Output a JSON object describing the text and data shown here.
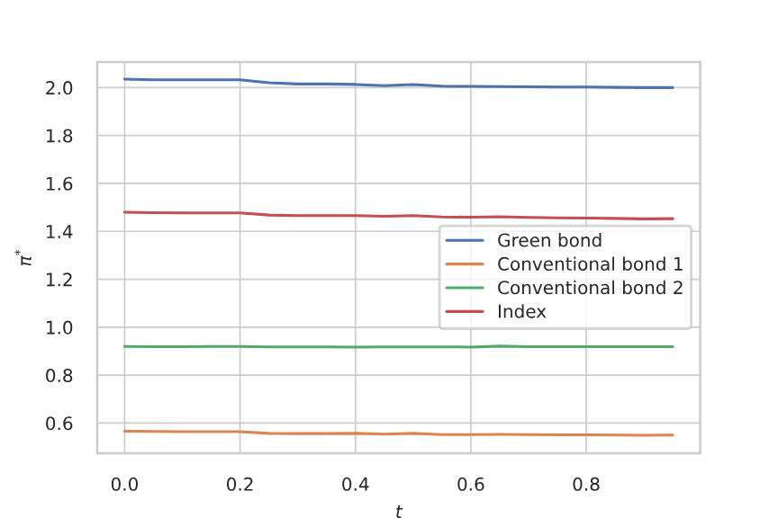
{
  "chart_data": {
    "type": "line",
    "xlabel": "t",
    "ylabel": "π$^{*}$",
    "x": [
      0,
      0.05,
      0.1,
      0.15,
      0.2,
      0.25,
      0.3,
      0.35,
      0.4,
      0.45,
      0.5,
      0.55,
      0.6,
      0.65,
      0.7,
      0.75,
      0.8,
      0.85,
      0.9,
      0.95
    ],
    "series": [
      {
        "name": "Green bond",
        "color": "#4c72b0",
        "values": [
          2.035,
          2.032,
          2.032,
          2.032,
          2.032,
          2.02,
          2.015,
          2.015,
          2.013,
          2.008,
          2.013,
          2.006,
          2.005,
          2.004,
          2.003,
          2.002,
          2.002,
          2.001,
          2.0,
          2.0
        ]
      },
      {
        "name": "Conventional bond 1",
        "color": "#dd8452",
        "values": [
          0.566,
          0.565,
          0.564,
          0.564,
          0.564,
          0.557,
          0.556,
          0.556,
          0.557,
          0.554,
          0.557,
          0.552,
          0.552,
          0.553,
          0.552,
          0.551,
          0.551,
          0.55,
          0.549,
          0.55
        ]
      },
      {
        "name": "Conventional bond 2",
        "color": "#55a868",
        "values": [
          0.92,
          0.919,
          0.919,
          0.92,
          0.92,
          0.918,
          0.918,
          0.918,
          0.917,
          0.918,
          0.918,
          0.918,
          0.917,
          0.921,
          0.919,
          0.919,
          0.919,
          0.919,
          0.919,
          0.919
        ]
      },
      {
        "name": "Index",
        "color": "#c44e52",
        "values": [
          1.48,
          1.478,
          1.477,
          1.477,
          1.477,
          1.468,
          1.466,
          1.466,
          1.466,
          1.463,
          1.466,
          1.46,
          1.459,
          1.461,
          1.458,
          1.456,
          1.455,
          1.454,
          1.452,
          1.453
        ]
      }
    ],
    "xlim": [
      -0.0475,
      0.9975
    ],
    "xticks": [
      {
        "value": 0,
        "label": "0.0"
      },
      0.2,
      0.4,
      0.6,
      0.8
    ],
    "ylim": [
      0.474,
      2.106
    ],
    "yticks": [
      0.6,
      0.8,
      {
        "value": 1,
        "label": "1.0"
      },
      1.2,
      1.4,
      1.6,
      1.8,
      {
        "value": 2,
        "label": "2.0"
      }
    ],
    "grid": true,
    "legend": "right"
  }
}
